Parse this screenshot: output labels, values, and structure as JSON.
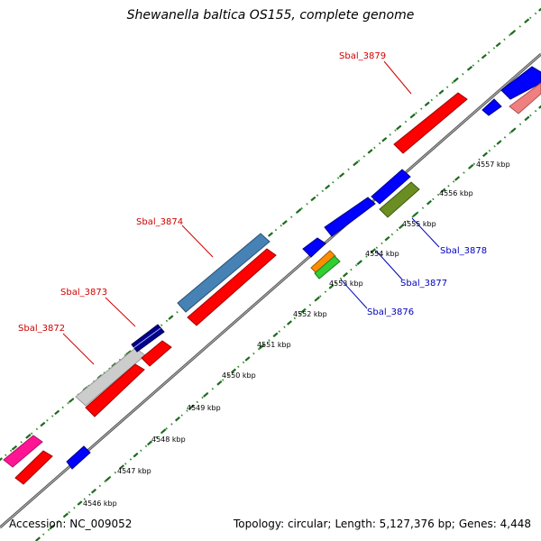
{
  "title": "Shewanella baltica OS155, complete genome",
  "footer": {
    "accession": "Accession: NC_009052",
    "topology": "Topology: circular;",
    "length": "Length: 5,127,376 bp;",
    "genes": "Genes: 4,448"
  },
  "tick_labels": [
    "4546 kbp",
    "4547 kbp",
    "4548 kbp",
    "4549 kbp",
    "4550 kbp",
    "4551 kbp",
    "4552 kbp",
    "4553 kbp",
    "4554 kbp",
    "4555 kbp",
    "4556 kbp",
    "4557 kbp"
  ],
  "gene_labels": [
    {
      "text": "Sbal_3872",
      "color": "#d00000"
    },
    {
      "text": "Sbal_3873",
      "color": "#d00000"
    },
    {
      "text": "Sbal_3874",
      "color": "#d00000"
    },
    {
      "text": "Sbal_3879",
      "color": "#d00000"
    },
    {
      "text": "Sbal_3876",
      "color": "#0000c0"
    },
    {
      "text": "Sbal_3877",
      "color": "#0000c0"
    },
    {
      "text": "Sbal_3878",
      "color": "#0000c0"
    }
  ],
  "colors": {
    "backbone": "#808080",
    "tick_dots": "#2e8b2e",
    "red": "#ff0000",
    "blue": "#0000ff",
    "steelblue": "#4682b4",
    "navy": "#00008b",
    "lightgray": "#cccccc",
    "pink": "#ff1493",
    "lightpink": "#f08080",
    "olive": "#6b8e23",
    "orange": "#ff8c00",
    "green": "#32cd32"
  }
}
